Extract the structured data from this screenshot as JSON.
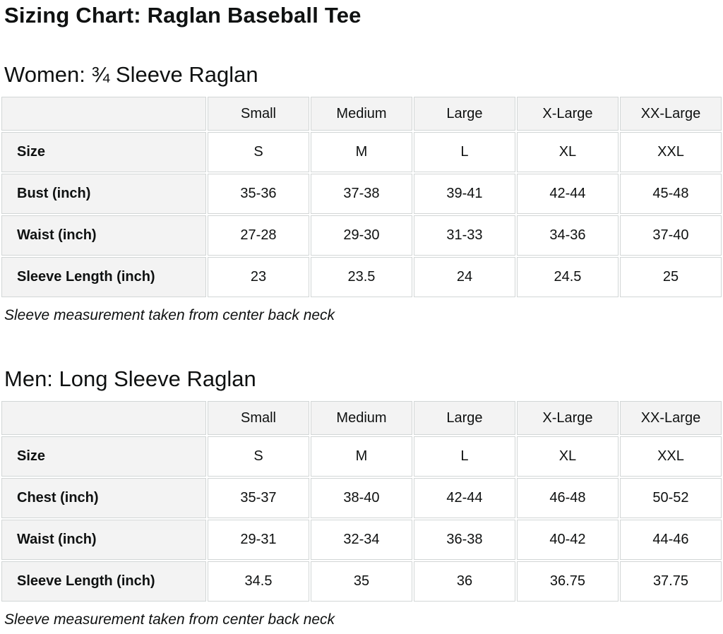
{
  "page": {
    "title": "Sizing Chart: Raglan Baseball Tee"
  },
  "colors": {
    "header_bg": "#f3f3f3",
    "cell_bg": "#ffffff",
    "border": "#d2d6d6",
    "text": "#0f1111"
  },
  "sections": [
    {
      "heading": "Women: ¾ Sleeve Raglan",
      "note": "Sleeve measurement taken from center back neck",
      "table": {
        "column_headers": [
          "",
          "Small",
          "Medium",
          "Large",
          "X-Large",
          "XX-Large"
        ],
        "rows": [
          {
            "label": "Size",
            "values": [
              "S",
              "M",
              "L",
              "XL",
              "XXL"
            ]
          },
          {
            "label": "Bust (inch)",
            "values": [
              "35-36",
              "37-38",
              "39-41",
              "42-44",
              "45-48"
            ]
          },
          {
            "label": "Waist (inch)",
            "values": [
              "27-28",
              "29-30",
              "31-33",
              "34-36",
              "37-40"
            ]
          },
          {
            "label": "Sleeve Length (inch)",
            "values": [
              "23",
              "23.5",
              "24",
              "24.5",
              "25"
            ]
          }
        ]
      }
    },
    {
      "heading": "Men: Long Sleeve Raglan",
      "note": "Sleeve measurement taken from center back neck",
      "table": {
        "column_headers": [
          "",
          "Small",
          "Medium",
          "Large",
          "X-Large",
          "XX-Large"
        ],
        "rows": [
          {
            "label": "Size",
            "values": [
              "S",
              "M",
              "L",
              "XL",
              "XXL"
            ]
          },
          {
            "label": "Chest (inch)",
            "values": [
              "35-37",
              "38-40",
              "42-44",
              "46-48",
              "50-52"
            ]
          },
          {
            "label": "Waist (inch)",
            "values": [
              "29-31",
              "32-34",
              "36-38",
              "40-42",
              "44-46"
            ]
          },
          {
            "label": "Sleeve Length (inch)",
            "values": [
              "34.5",
              "35",
              "36",
              "36.75",
              "37.75"
            ]
          }
        ]
      }
    }
  ]
}
